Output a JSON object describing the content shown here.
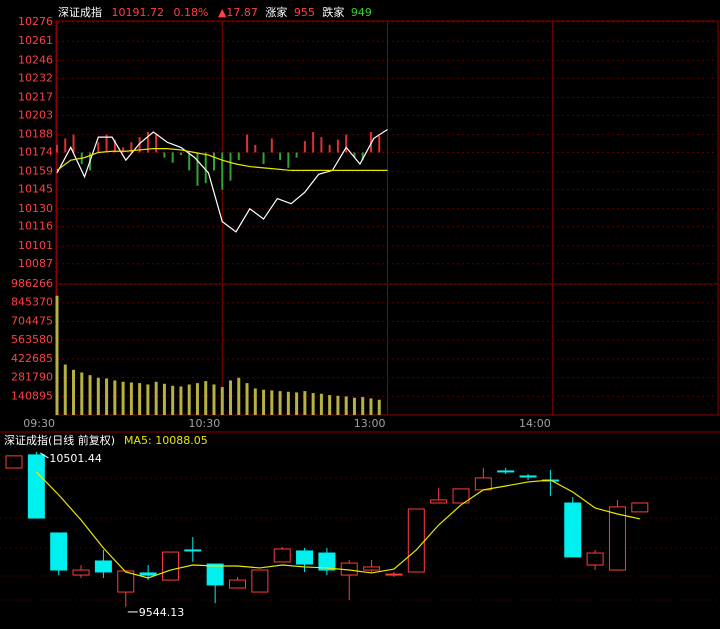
{
  "chart_data": [
    {
      "type": "line",
      "title": "深证成指",
      "last": 10191.72,
      "change_pct": "0.18%",
      "change": "▲17.87",
      "up_label": "涨家",
      "up_count": 955,
      "down_label": "跌家",
      "down_count": 949,
      "x": [
        0,
        5,
        10,
        15,
        20,
        25,
        30,
        35,
        40,
        45,
        50,
        55,
        60,
        65,
        70,
        75,
        80,
        85,
        90,
        95,
        100,
        105,
        110,
        115,
        120
      ],
      "series": [
        {
          "color": "#ffffff",
          "values": [
            10158,
            10178,
            10155,
            10186,
            10186,
            10168,
            10181,
            10190,
            10182,
            10178,
            10170,
            10158,
            10120,
            10112,
            10130,
            10122,
            10138,
            10134,
            10143,
            10157,
            10160,
            10178,
            10165,
            10185,
            10192
          ]
        },
        {
          "color": "#e8e800",
          "values": [
            10160,
            10168,
            10170,
            10174,
            10175,
            10175,
            10176,
            10177,
            10177,
            10176,
            10174,
            10172,
            10168,
            10165,
            10163,
            10162,
            10161,
            10160,
            10160,
            10160,
            10160,
            10160,
            10160,
            10160,
            10160
          ]
        }
      ],
      "breadth": {
        "up_color": "#e03030",
        "down_color": "#2fa52f",
        "x": [
          0,
          3,
          6,
          9,
          12,
          15,
          18,
          21,
          24,
          27,
          30,
          33,
          36,
          39,
          42,
          45,
          48,
          51,
          54,
          57,
          60,
          63,
          66,
          69,
          72,
          75,
          78,
          81,
          84,
          87,
          90,
          93,
          96,
          99,
          102,
          105,
          108,
          111,
          114,
          117
        ],
        "values": [
          10180,
          10185,
          10188,
          10165,
          10160,
          10182,
          10188,
          10184,
          10178,
          10182,
          10186,
          10190,
          10188,
          10170,
          10166,
          10172,
          10160,
          10148,
          10150,
          10160,
          10145,
          10152,
          10168,
          10188,
          10180,
          10165,
          10185,
          10168,
          10162,
          10170,
          10183,
          10190,
          10186,
          10180,
          10184,
          10188,
          10170,
          10168,
          10190,
          10187
        ]
      },
      "xlim": [
        0,
        240
      ],
      "xticks": [
        {
          "value": 0,
          "label": "09:30"
        },
        {
          "value": 60,
          "label": "10:30"
        },
        {
          "value": 120,
          "label": "13:00"
        },
        {
          "value": 180,
          "label": "14:00"
        }
      ],
      "ylim": [
        10072,
        10276
      ],
      "yticks": [
        10276,
        10261,
        10246,
        10232,
        10217,
        10203,
        10188,
        10174,
        10159,
        10145,
        10130,
        10116,
        10101,
        10087
      ],
      "grid": true
    },
    {
      "type": "bar",
      "color": "#b8b040",
      "x": [
        0,
        3,
        6,
        9,
        12,
        15,
        18,
        21,
        24,
        27,
        30,
        33,
        36,
        39,
        42,
        45,
        48,
        51,
        54,
        57,
        60,
        63,
        66,
        69,
        72,
        75,
        78,
        81,
        84,
        87,
        90,
        93,
        96,
        99,
        102,
        105,
        108,
        111,
        114,
        117
      ],
      "values": [
        898000,
        380000,
        340000,
        320000,
        300000,
        280000,
        275000,
        260000,
        250000,
        245000,
        240000,
        230000,
        250000,
        235000,
        220000,
        215000,
        230000,
        240000,
        255000,
        230000,
        210000,
        260000,
        280000,
        240000,
        200000,
        190000,
        185000,
        180000,
        175000,
        170000,
        180000,
        165000,
        160000,
        150000,
        145000,
        140000,
        130000,
        135000,
        125000,
        115000
      ],
      "xlim": [
        0,
        240
      ],
      "ylim": [
        0,
        986266
      ],
      "yticks": [
        986266,
        845370,
        704475,
        563580,
        422685,
        281790,
        140895
      ],
      "grid": true
    },
    {
      "type": "candlestick",
      "title": "深证成指(日线 前复权)",
      "ma_legend": "MA5: 10088.05",
      "up_color": "#ff3c3c",
      "down_color": "#00f0f0",
      "ma_color": "#e8e800",
      "open": [
        10402,
        10483,
        10001,
        9741,
        9828,
        9636,
        9754,
        9710,
        9896,
        9809,
        9661,
        9636,
        9822,
        9890,
        9877,
        9741,
        9772,
        9741,
        9760,
        10186,
        10186,
        10267,
        10384,
        10353,
        10328,
        10186,
        9803,
        9772,
        10131
      ],
      "close": [
        10477,
        10093,
        9772,
        9772,
        9760,
        9766,
        9741,
        9883,
        9890,
        9680,
        9710,
        9772,
        9902,
        9809,
        9772,
        9815,
        9791,
        9747,
        10149,
        10205,
        10273,
        10341,
        10378,
        10347,
        10322,
        9853,
        9877,
        10162,
        10186
      ],
      "high": [
        10480,
        10501.44,
        10001,
        9803,
        9896,
        9766,
        9803,
        9883,
        9976,
        9809,
        9729,
        9772,
        9914,
        9908,
        9908,
        9834,
        9834,
        9760,
        10149,
        10279,
        10273,
        10403,
        10403,
        10365,
        10390,
        10223,
        9896,
        10205,
        10186
      ],
      "low": [
        10400,
        10093,
        9741,
        9723,
        9723,
        9544.13,
        9710,
        9710,
        9822,
        9568,
        9661,
        9636,
        9822,
        9760,
        9741,
        9587,
        9760,
        9729,
        9760,
        10186,
        10186,
        10267,
        10365,
        10328,
        10230,
        9853,
        9772,
        9772,
        10131
      ],
      "ma": [
        null,
        10378,
        10236,
        10081,
        9908,
        9760,
        9723,
        9772,
        9803,
        9797,
        9797,
        9785,
        9803,
        9791,
        9785,
        9772,
        9754,
        9778,
        9896,
        10050,
        10174,
        10267,
        10291,
        10316,
        10328,
        10254,
        10155,
        10118,
        10088.05
      ],
      "ylim": [
        9414,
        10575
      ]
    }
  ]
}
